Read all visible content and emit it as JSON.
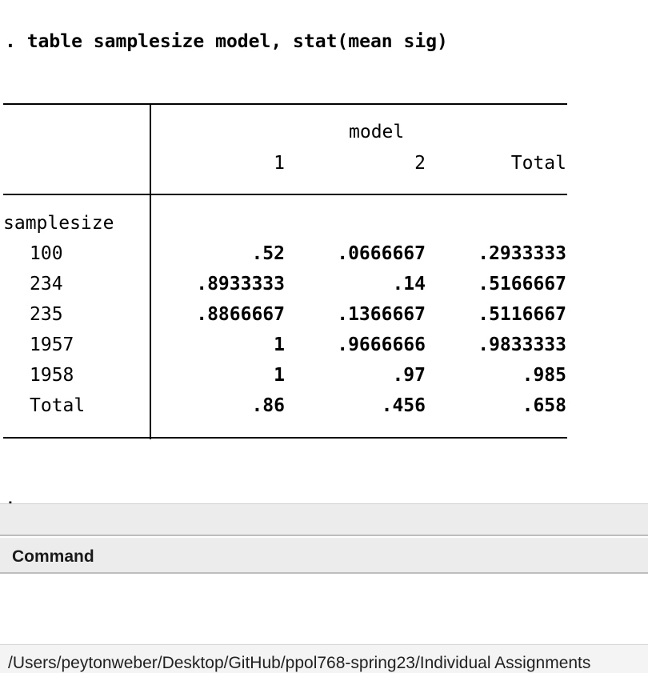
{
  "results": {
    "command_echo": ". table samplesize model, stat(mean sig)",
    "table": {
      "col_group_header": "model",
      "col_headers": [
        "1",
        "2",
        "Total"
      ],
      "row_var": "samplesize",
      "rows": [
        {
          "label": "100",
          "values": [
            ".52",
            ".0666667",
            ".2933333"
          ]
        },
        {
          "label": "234",
          "values": [
            ".8933333",
            ".14",
            ".5166667"
          ]
        },
        {
          "label": "235",
          "values": [
            ".8866667",
            ".1366667",
            ".5116667"
          ]
        },
        {
          "label": "1957",
          "values": [
            "1",
            ".9666666",
            ".9833333"
          ]
        },
        {
          "label": "1958",
          "values": [
            "1",
            ".97",
            ".985"
          ]
        },
        {
          "label": "Total",
          "values": [
            ".86",
            ".456",
            ".658"
          ]
        }
      ]
    },
    "prompt": "."
  },
  "command_pane": {
    "header_label": "Command",
    "input_value": ""
  },
  "statusbar": {
    "working_directory": "/Users/peytonweber/Desktop/GitHub/ppol768-spring23/Individual Assignments"
  }
}
